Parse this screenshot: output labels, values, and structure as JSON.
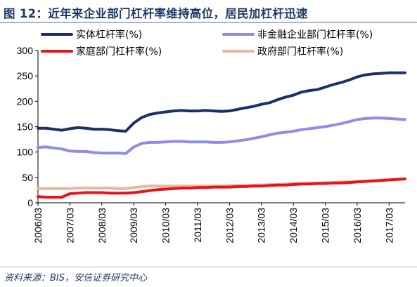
{
  "figure": {
    "title": "图 12：近年来企业部门杠杆率维持高位，居民加杠杆迅速",
    "source": "资料来源：BIS，安信证券研究中心"
  },
  "chart_data": {
    "type": "line",
    "title": "图 12：近年来企业部门杠杆率维持高位，居民加杠杆迅速",
    "xlabel": "",
    "ylabel": "",
    "ylim": [
      0,
      300
    ],
    "yticks": [
      0,
      50,
      100,
      150,
      200,
      250,
      300
    ],
    "xlim": [
      2006.0,
      2017.5
    ],
    "xticks": [
      {
        "label": "2006/03",
        "x": 2006.0
      },
      {
        "label": "2007/03",
        "x": 2007.0
      },
      {
        "label": "2008/03",
        "x": 2008.0
      },
      {
        "label": "2009/03",
        "x": 2009.0
      },
      {
        "label": "2010/03",
        "x": 2010.0
      },
      {
        "label": "2011/03",
        "x": 2011.0
      },
      {
        "label": "2012/03",
        "x": 2012.0
      },
      {
        "label": "2013/03",
        "x": 2013.0
      },
      {
        "label": "2014/03",
        "x": 2014.0
      },
      {
        "label": "2015/03",
        "x": 2015.0
      },
      {
        "label": "2016/03",
        "x": 2016.0
      },
      {
        "label": "2017/03",
        "x": 2017.0
      }
    ],
    "grid": false,
    "legend_position": "top",
    "x": [
      2006.0,
      2006.25,
      2006.5,
      2006.75,
      2007.0,
      2007.25,
      2007.5,
      2007.75,
      2008.0,
      2008.25,
      2008.5,
      2008.75,
      2009.0,
      2009.25,
      2009.5,
      2009.75,
      2010.0,
      2010.25,
      2010.5,
      2010.75,
      2011.0,
      2011.25,
      2011.5,
      2011.75,
      2012.0,
      2012.25,
      2012.5,
      2012.75,
      2013.0,
      2013.25,
      2013.5,
      2013.75,
      2014.0,
      2014.25,
      2014.5,
      2014.75,
      2015.0,
      2015.25,
      2015.5,
      2015.75,
      2016.0,
      2016.25,
      2016.5,
      2016.75,
      2017.0,
      2017.25,
      2017.5
    ],
    "series": [
      {
        "name": "实体杠杆率(%)",
        "color": "#1b2f6b",
        "values": [
          147,
          147,
          145,
          143,
          146,
          148,
          147,
          145,
          145,
          144,
          142,
          141,
          157,
          168,
          174,
          177,
          179,
          181,
          182,
          181,
          181,
          182,
          181,
          180,
          181,
          184,
          187,
          190,
          194,
          197,
          203,
          208,
          212,
          218,
          221,
          223,
          228,
          233,
          237,
          242,
          248,
          252,
          254,
          255,
          256,
          256,
          256
        ]
      },
      {
        "name": "非金融企业部门杠杆率(%)",
        "color": "#8c8ee6",
        "values": [
          109,
          110,
          108,
          106,
          102,
          101,
          101,
          99,
          98,
          98,
          98,
          97,
          110,
          117,
          119,
          119,
          120,
          121,
          121,
          120,
          120,
          120,
          119,
          119,
          120,
          122,
          124,
          127,
          130,
          134,
          137,
          139,
          141,
          144,
          146,
          148,
          150,
          153,
          156,
          160,
          164,
          166,
          167,
          167,
          166,
          165,
          164
        ]
      },
      {
        "name": "家庭部门杠杆率(%)",
        "color": "#e8141c",
        "values": [
          12,
          11,
          11,
          11,
          18,
          19,
          20,
          20,
          20,
          19,
          19,
          19,
          20,
          22,
          24,
          26,
          27,
          28,
          29,
          29,
          30,
          30,
          31,
          31,
          31,
          32,
          32,
          33,
          33,
          34,
          35,
          35,
          36,
          37,
          37,
          38,
          38,
          39,
          39,
          40,
          41,
          42,
          43,
          44,
          45,
          46,
          47
        ]
      },
      {
        "name": "政府部门杠杆率(%)",
        "color": "#eab79a",
        "values": [
          28,
          28,
          28,
          28,
          28,
          29,
          29,
          29,
          29,
          29,
          28,
          28,
          30,
          32,
          33,
          33,
          33,
          33,
          33,
          33,
          33,
          33,
          33,
          33,
          34,
          34,
          34,
          35,
          35,
          36,
          36,
          37,
          38,
          38,
          39,
          39,
          40,
          40,
          41,
          41,
          42,
          43,
          44,
          45,
          45,
          46,
          47
        ]
      }
    ]
  }
}
